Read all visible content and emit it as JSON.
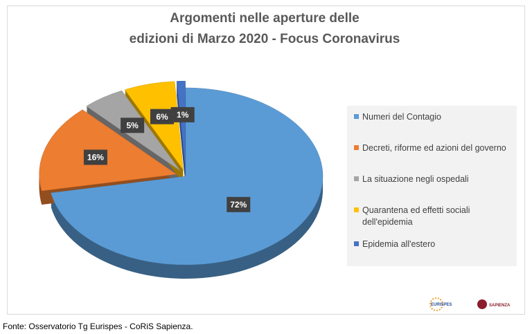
{
  "chart_data": {
    "type": "pie",
    "title": [
      "Argomenti nelle aperture delle",
      "edizioni di Marzo 2020 - Focus Coronavirus"
    ],
    "categories": [
      "Numeri del Contagio",
      "Decreti, riforme ed azioni del governo",
      "La situazione negli ospedali",
      "Quarantena ed effetti sociali dell'epidemia",
      "Epidemia all'estero"
    ],
    "values": [
      72,
      16,
      5,
      6,
      1
    ],
    "value_labels": [
      "72%",
      "16%",
      "5%",
      "6%",
      "1%"
    ],
    "colors": [
      "#5b9bd5",
      "#ed7d31",
      "#a5a5a5",
      "#ffc000",
      "#4472c4"
    ],
    "legend": "right"
  },
  "source": "Fonte: Osservatorio Tg Eurispes - CoRiS Sapienza.",
  "logos": [
    "EURISPES",
    "SAPIENZA"
  ]
}
